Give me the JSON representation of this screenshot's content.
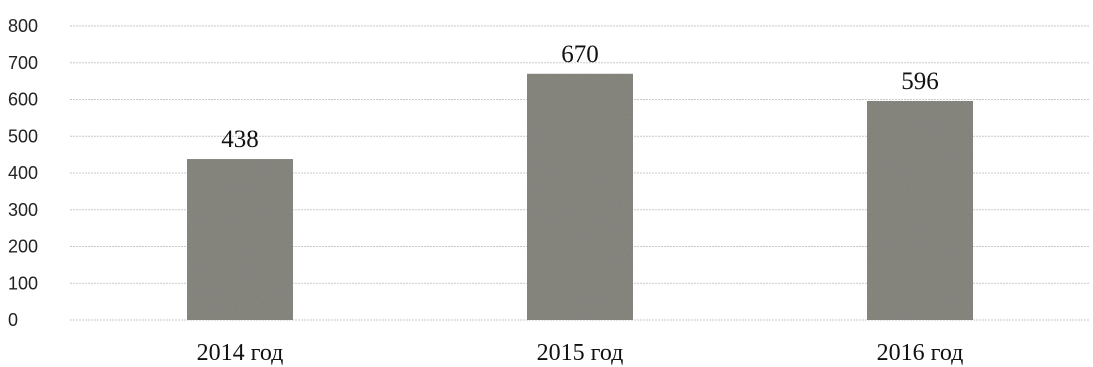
{
  "chart_data": {
    "type": "bar",
    "title": "",
    "xlabel": "",
    "ylabel": "",
    "categories": [
      "2014 год",
      "2015 год",
      "2016 год"
    ],
    "values": [
      438,
      670,
      596
    ],
    "data_labels": [
      "438",
      "670",
      "596"
    ],
    "ylim": [
      0,
      800
    ],
    "yticks": [
      0,
      100,
      200,
      300,
      400,
      500,
      600,
      700,
      800
    ],
    "grid": true,
    "legend": "none",
    "bar_color": "#8a8a82"
  }
}
